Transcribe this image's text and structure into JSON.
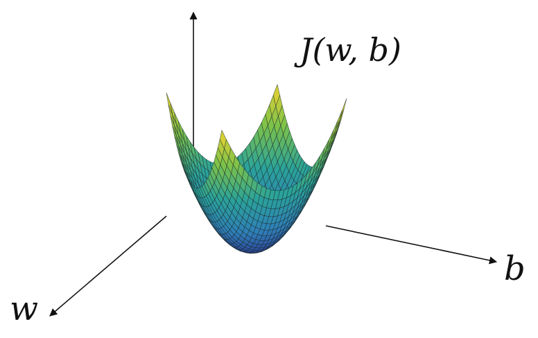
{
  "diagram": {
    "function_label": "J(w, b)",
    "axis_b_label": "b",
    "axis_w_label": "w",
    "colors": {
      "low": "#2b2f8f",
      "mid_low": "#2f7fb8",
      "mid": "#2aa39a",
      "mid_high": "#7cc24a",
      "high": "#f2d530",
      "mesh": "#1b2a2a",
      "axis": "#111111"
    }
  }
}
